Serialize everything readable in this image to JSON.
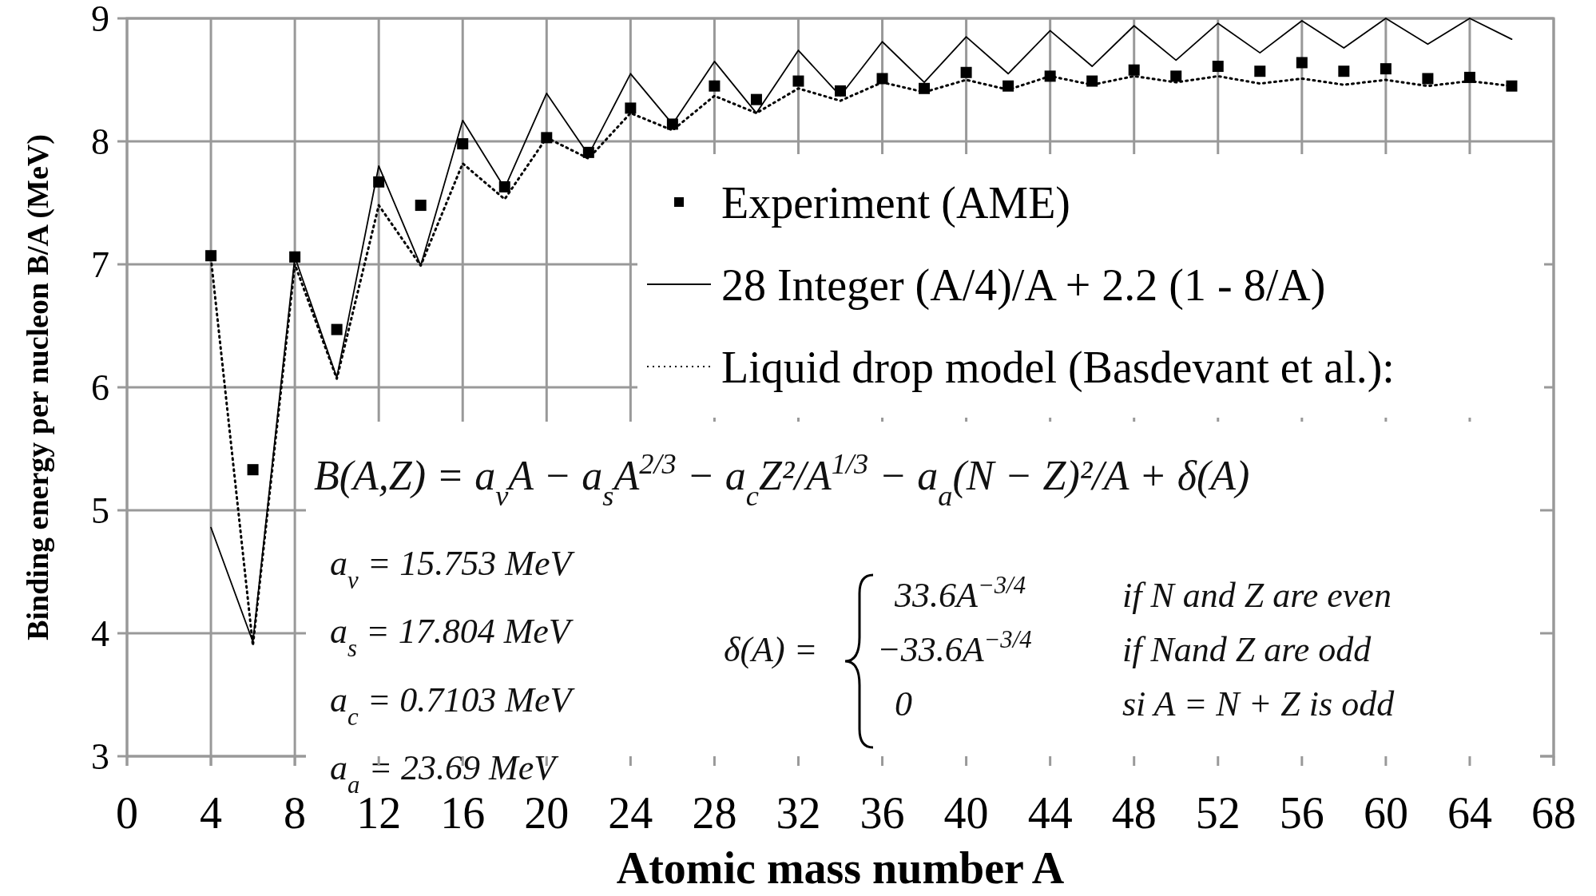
{
  "chart_data": {
    "type": "line",
    "xlabel": "Atomic mass number A",
    "ylabel": "Binding energy per nucleon B/A (MeV)",
    "x": [
      4,
      6,
      8,
      10,
      12,
      14,
      16,
      18,
      20,
      22,
      24,
      26,
      28,
      30,
      32,
      34,
      36,
      38,
      40,
      42,
      44,
      46,
      48,
      50,
      52,
      54,
      56,
      58,
      60,
      62,
      64,
      66
    ],
    "xlim": [
      0,
      68
    ],
    "xticks": [
      0,
      4,
      8,
      12,
      16,
      20,
      24,
      28,
      32,
      36,
      40,
      44,
      48,
      52,
      56,
      60,
      64,
      68
    ],
    "ylim": [
      3,
      9
    ],
    "yticks": [
      3,
      4,
      5,
      6,
      7,
      8,
      9
    ],
    "grid": true,
    "legend": "right",
    "series": [
      {
        "name": "Experiment (AME)",
        "type": "scatter",
        "marker": "square",
        "color": "#000000",
        "values": [
          7.07,
          5.33,
          7.06,
          6.47,
          7.67,
          7.48,
          7.98,
          7.63,
          8.03,
          7.91,
          8.27,
          8.14,
          8.45,
          8.34,
          8.49,
          8.41,
          8.51,
          8.43,
          8.56,
          8.45,
          8.53,
          8.49,
          8.58,
          8.53,
          8.61,
          8.57,
          8.64,
          8.57,
          8.59,
          8.51,
          8.52,
          8.45
        ]
      },
      {
        "name": "28 Integer (A/4)/A + 2.2 (1 - 8/A)",
        "line_style": "solid",
        "color": "#000000",
        "values": [
          4.86,
          3.93,
          7.06,
          6.08,
          7.8,
          6.99,
          8.17,
          7.62,
          8.39,
          7.89,
          8.55,
          8.14,
          8.65,
          8.23,
          8.74,
          8.37,
          8.81,
          8.48,
          8.85,
          8.55,
          8.9,
          8.61,
          8.94,
          8.66,
          8.96,
          8.72,
          8.98,
          8.76,
          9.0,
          8.79,
          9.0,
          8.83
        ]
      },
      {
        "name": "Liquid drop model (Basdevant et al.):",
        "line_style": "dotted",
        "color": "#000000",
        "values": [
          7.05,
          3.9,
          7.0,
          6.07,
          7.48,
          6.99,
          7.82,
          7.53,
          8.03,
          7.86,
          8.23,
          8.09,
          8.37,
          8.23,
          8.43,
          8.33,
          8.48,
          8.4,
          8.5,
          8.42,
          8.53,
          8.46,
          8.53,
          8.48,
          8.53,
          8.47,
          8.51,
          8.46,
          8.5,
          8.45,
          8.49,
          8.45
        ]
      }
    ],
    "annotations": [
      "B(A,Z) = a$_{v}$A − a$_{s}$A$^{2/3}$ − a$_{c}$Z²/A$^{1/3}$ − a$_{a}$(N − Z)²/A + δ(A)",
      "a$_{v}$ = 15.753 MeV",
      "a$_{s}$ = 17.804 MeV",
      "a$_{c}$ = 0.7103 MeV",
      "a$_{a}$ = 23.69 MeV",
      "δ(A) =",
      "33.6A$^{−3/4}$",
      "if N and Z are even",
      "−33.6A$^{−3/4}$",
      "if Nand Z are odd",
      "0",
      "si A = N + Z is odd"
    ]
  }
}
